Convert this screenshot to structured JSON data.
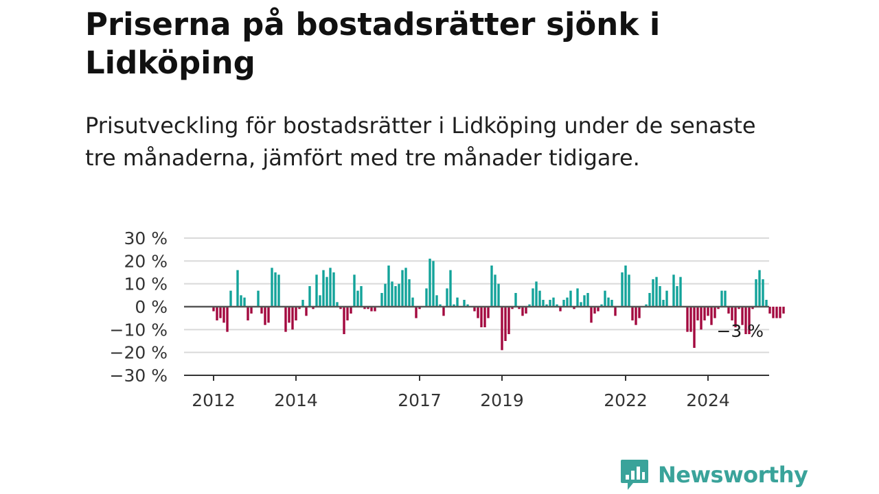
{
  "title": "Priserna på bostadsrätter sjönk i Lidköping",
  "subtitle": "Prisutveckling för bostadsrätter i Lidköping under de senaste tre månaderna, jämfört med tre månader tidigare.",
  "brand": {
    "name": "Newsworthy"
  },
  "colors": {
    "positive": "#13a39a",
    "negative": "#a3093f",
    "grid": "#d9d9d9",
    "axis": "#333333",
    "brand": "#3aa39a"
  },
  "chart_data": {
    "type": "bar",
    "x_start": "2012-01",
    "frequency": "monthly",
    "ylim": [
      -30,
      30
    ],
    "y_ticks": [
      30,
      20,
      10,
      0,
      -10,
      -20,
      -30
    ],
    "y_tick_labels": [
      "30 %",
      "20 %",
      "10 %",
      "0 %",
      "−10 %",
      "−20 %",
      "−30 %"
    ],
    "x_ticks": [
      {
        "label": "2012",
        "date": "2012-01"
      },
      {
        "label": "2014",
        "date": "2014-01"
      },
      {
        "label": "2017",
        "date": "2017-01"
      },
      {
        "label": "2019",
        "date": "2019-01"
      },
      {
        "label": "2022",
        "date": "2022-01"
      },
      {
        "label": "2024",
        "date": "2024-01"
      }
    ],
    "last_value_label": "−3 %",
    "grid": true,
    "values": [
      -2,
      -6,
      -5,
      -7,
      -11,
      7,
      0,
      16,
      5,
      4,
      -6,
      -3,
      0,
      7,
      -3,
      -8,
      -7,
      17,
      15,
      14,
      0,
      -11,
      -7,
      -10,
      -6,
      -1,
      3,
      -4,
      9,
      -1,
      14,
      5,
      16,
      13,
      17,
      15,
      2,
      -1,
      -12,
      -6,
      -3,
      14,
      7,
      9,
      -1,
      -1,
      -2,
      -2,
      0,
      6,
      10,
      18,
      11,
      9,
      10,
      16,
      17,
      12,
      4,
      -5,
      -1,
      0,
      8,
      21,
      20,
      5,
      1,
      -4,
      8,
      16,
      1,
      4,
      0,
      3,
      1,
      0,
      -2,
      -5,
      -9,
      -9,
      -5,
      18,
      14,
      10,
      -19,
      -15,
      -12,
      -1,
      6,
      -1,
      -4,
      -3,
      1,
      8,
      11,
      7,
      3,
      1,
      3,
      4,
      1,
      -2,
      3,
      4,
      7,
      -1,
      8,
      2,
      5,
      6,
      -7,
      -3,
      -2,
      1,
      7,
      4,
      3,
      -4,
      0,
      15,
      18,
      14,
      -6,
      -8,
      -5,
      0,
      1,
      6,
      12,
      13,
      9,
      3,
      7,
      0,
      14,
      9,
      13,
      0,
      -11,
      -11,
      -18,
      -6,
      -10,
      -6,
      -4,
      -8,
      -5,
      -1,
      7,
      7,
      -3,
      -6,
      -9,
      -1,
      -8,
      -12,
      -12,
      -1,
      12,
      16,
      12,
      3,
      -3,
      -5,
      -5,
      -5,
      -3
    ]
  }
}
